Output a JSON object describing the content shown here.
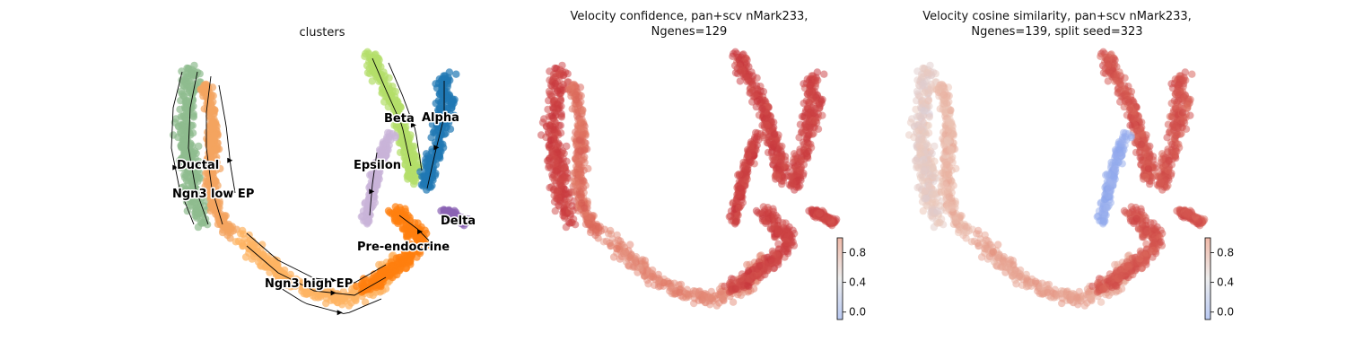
{
  "chart_data": [
    {
      "type": "scatter",
      "title": "clusters",
      "subtype": "embedding with velocity streamlines",
      "legend": "on data",
      "clusters": [
        {
          "name": "Ductal",
          "color": "#8fbc8f"
        },
        {
          "name": "Ngn3 low EP",
          "color": "#f4a460"
        },
        {
          "name": "Ngn3 high EP",
          "color": "#fdb462"
        },
        {
          "name": "Pre-endocrine",
          "color": "#ff7f0e"
        },
        {
          "name": "Beta",
          "color": "#b3de69"
        },
        {
          "name": "Alpha",
          "color": "#1f77b4"
        },
        {
          "name": "Delta",
          "color": "#8a62b4"
        },
        {
          "name": "Epsilon",
          "color": "#c9b3d9"
        }
      ]
    },
    {
      "type": "scatter",
      "title_lines": [
        "Velocity confidence, pan+scv nMark233,",
        "Ngenes=129"
      ],
      "colormap": "coolwarm",
      "colorbar": {
        "ticks": [
          0.8,
          0.4,
          0.0
        ],
        "tick_labels": [
          "0.8",
          "0.4",
          "0.0"
        ],
        "range": [
          -0.1,
          1.0
        ]
      }
    },
    {
      "type": "scatter",
      "title_lines": [
        "Velocity cosine similarity, pan+scv nMark233,",
        "Ngenes=139, split seed=323"
      ],
      "colormap": "coolwarm",
      "colorbar": {
        "ticks": [
          0.8,
          0.4,
          0.0
        ],
        "tick_labels": [
          "0.8",
          "0.4",
          "0.0"
        ],
        "range": [
          -0.1,
          1.0
        ]
      }
    }
  ]
}
